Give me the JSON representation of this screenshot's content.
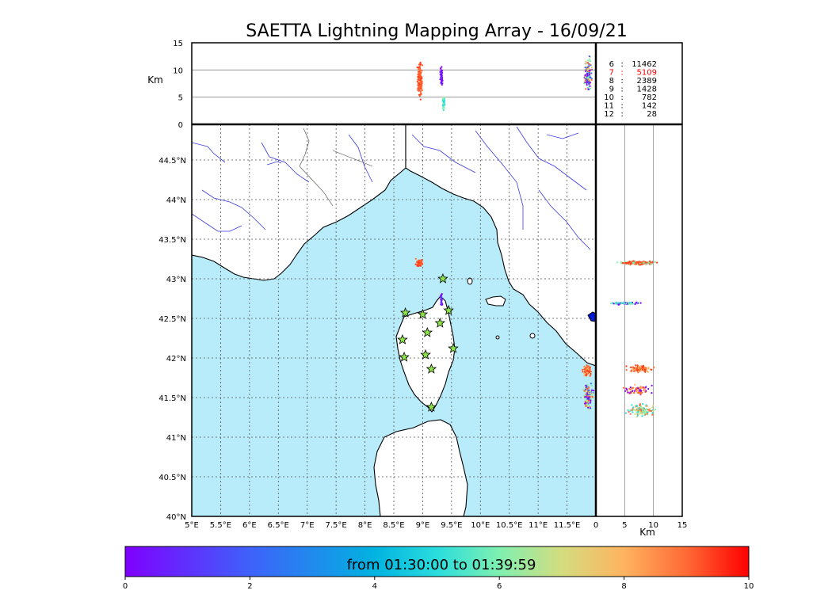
{
  "title": "SAETTA Lightning Mapping Array - 16/09/21",
  "colors": {
    "sea": "#b8ecfb",
    "land": "#ffffff",
    "grid": "#555555",
    "rivers": "#3a3ae0",
    "coast": "#000000",
    "station_fill": "#8ee24a",
    "highlight_count": "#ff0000"
  },
  "altitude_panel": {
    "unit_label": "Km",
    "y_ticks": [
      "0",
      "5",
      "10",
      "15"
    ]
  },
  "counts_table": [
    {
      "level": "6",
      "sep": ":",
      "count": "11462",
      "highlight": false
    },
    {
      "level": "7",
      "sep": ":",
      "count": "5109",
      "highlight": true
    },
    {
      "level": "8",
      "sep": ":",
      "count": "2389",
      "highlight": false
    },
    {
      "level": "9",
      "sep": ":",
      "count": "1428",
      "highlight": false
    },
    {
      "level": "10",
      "sep": ":",
      "count": "782",
      "highlight": false
    },
    {
      "level": "11",
      "sep": ":",
      "count": "142",
      "highlight": false
    },
    {
      "level": "12",
      "sep": ":",
      "count": "28",
      "highlight": false
    }
  ],
  "map_panel": {
    "lon_ticks": [
      "5°E",
      "5.5°E",
      "6°E",
      "6.5°E",
      "7°E",
      "7.5°E",
      "8°E",
      "8.5°E",
      "9°E",
      "9.5°E",
      "10°E",
      "10.5°E",
      "11°E",
      "11.5°E"
    ],
    "lat_ticks": [
      "40°N",
      "40.5°N",
      "41°N",
      "41.5°N",
      "42°N",
      "42.5°N",
      "43°N",
      "43.5°N",
      "44°N",
      "44.5°N"
    ]
  },
  "side_panel": {
    "unit_label": "Km",
    "x_ticks": [
      "0",
      "5",
      "10",
      "15"
    ]
  },
  "stations": [
    {
      "lon": 9.35,
      "lat": 43.0
    },
    {
      "lon": 8.7,
      "lat": 42.57
    },
    {
      "lon": 9.0,
      "lat": 42.55
    },
    {
      "lon": 9.45,
      "lat": 42.6
    },
    {
      "lon": 9.3,
      "lat": 42.44
    },
    {
      "lon": 9.08,
      "lat": 42.32
    },
    {
      "lon": 8.65,
      "lat": 42.23
    },
    {
      "lon": 9.53,
      "lat": 42.12
    },
    {
      "lon": 9.05,
      "lat": 42.04
    },
    {
      "lon": 8.68,
      "lat": 42.01
    },
    {
      "lon": 9.15,
      "lat": 41.86
    },
    {
      "lon": 9.15,
      "lat": 41.38
    }
  ],
  "colorbar": {
    "label": "from 01:30:00 to 01:39:59",
    "ticks": [
      "0",
      "2",
      "4",
      "6",
      "8",
      "10"
    ]
  }
}
